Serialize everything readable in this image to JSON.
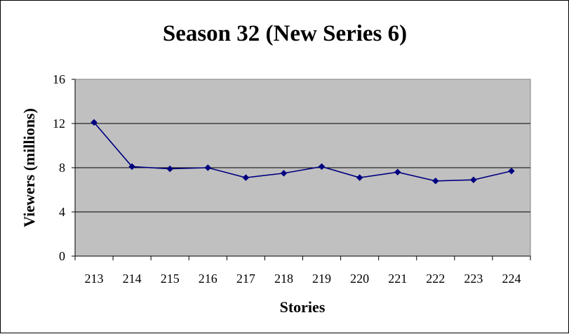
{
  "chart_data": {
    "type": "line",
    "title": "Season 32 (New Series 6)",
    "xlabel": "Stories",
    "ylabel": "Viewers (millions)",
    "categories": [
      "213",
      "214",
      "215",
      "216",
      "217",
      "218",
      "219",
      "220",
      "221",
      "222",
      "223",
      "224"
    ],
    "series": [
      {
        "values": [
          12.1,
          8.1,
          7.9,
          8.0,
          7.1,
          7.5,
          8.1,
          7.1,
          7.6,
          6.8,
          6.9,
          7.7
        ]
      }
    ],
    "ylim": [
      0,
      16
    ],
    "yticks": [
      "0",
      "4",
      "8",
      "12",
      "16"
    ],
    "grid": true,
    "legend": "none",
    "colors": {
      "plot_background": "#c0c0c0",
      "line": "#000080",
      "marker": "#000080",
      "grid": "#000000"
    }
  }
}
